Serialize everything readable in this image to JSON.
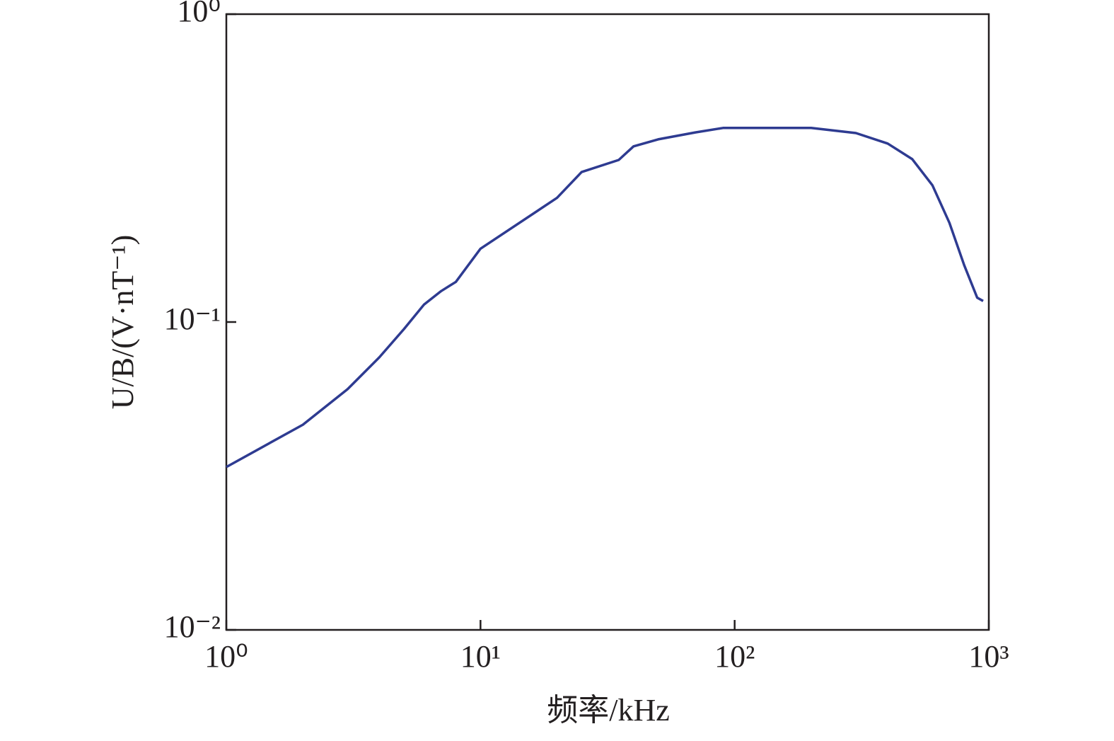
{
  "chart_data": {
    "type": "line",
    "x_label": "频率/kHz",
    "y_label": "U/B/(V·nT⁻¹)",
    "x": [
      1,
      2,
      3,
      4,
      5,
      6,
      7,
      8,
      10,
      20,
      25,
      35,
      40,
      50,
      70,
      90,
      200,
      300,
      400,
      500,
      600,
      700,
      800,
      900,
      950
    ],
    "values": [
      0.0338,
      0.0464,
      0.0605,
      0.0768,
      0.0949,
      0.114,
      0.126,
      0.135,
      0.173,
      0.253,
      0.307,
      0.336,
      0.372,
      0.392,
      0.413,
      0.427,
      0.427,
      0.411,
      0.38,
      0.338,
      0.278,
      0.21,
      0.153,
      0.12,
      0.117
    ],
    "color": "#2e3b91",
    "xscale": "log",
    "yscale": "log",
    "xlim": [
      1,
      1000
    ],
    "ylim": [
      0.01,
      1
    ],
    "xticks": [
      {
        "value": 1,
        "label": "10⁰"
      },
      {
        "value": 10,
        "label": "10¹"
      },
      {
        "value": 100,
        "label": "10²"
      },
      {
        "value": 1000,
        "label": "10³"
      }
    ],
    "yticks": [
      {
        "value": 0.01,
        "label": "10⁻²"
      },
      {
        "value": 0.1,
        "label": "10⁻¹"
      },
      {
        "value": 1,
        "label": "10⁰"
      }
    ]
  }
}
